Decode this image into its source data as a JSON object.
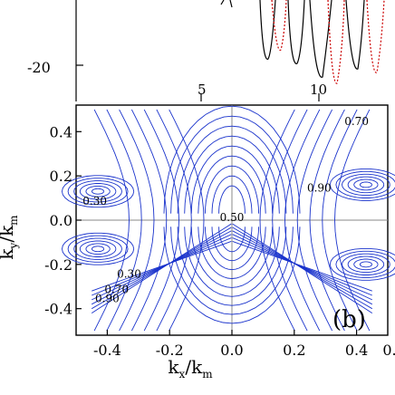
{
  "chart_data": [
    {
      "type": "line",
      "panel": "top (cropped)",
      "y_tick_labels": [
        "-20"
      ],
      "x_tick_labels": [
        "5",
        "10"
      ],
      "series": [
        {
          "style": "solid",
          "color": "#000000"
        },
        {
          "style": "dotted",
          "color": "#cc0000"
        }
      ]
    },
    {
      "type": "contour",
      "panel_label": "(b)",
      "xlabel": "k_x/k_m",
      "ylabel": "k_y/k_m",
      "xlim": [
        -0.5,
        0.5
      ],
      "ylim": [
        -0.52,
        0.52
      ],
      "x_tick_labels": [
        "-0.4",
        "-0.2",
        "0.0",
        "0.2",
        "0.4",
        "0."
      ],
      "x_ticks": [
        -0.4,
        -0.2,
        0.0,
        0.2,
        0.4,
        0.6
      ],
      "y_tick_labels": [
        "0.4",
        "0.2",
        "0.0",
        "-0.2",
        "-0.4"
      ],
      "y_ticks": [
        0.4,
        0.2,
        0.0,
        -0.2,
        -0.4
      ],
      "contour_levels": [
        "0.70",
        "0.90",
        "0.30",
        "0.50",
        "0.30",
        "0.70",
        "0.90"
      ],
      "line_color": "#1a33cc",
      "grid": "gray lines at kx = 0 and ky = 0"
    }
  ]
}
